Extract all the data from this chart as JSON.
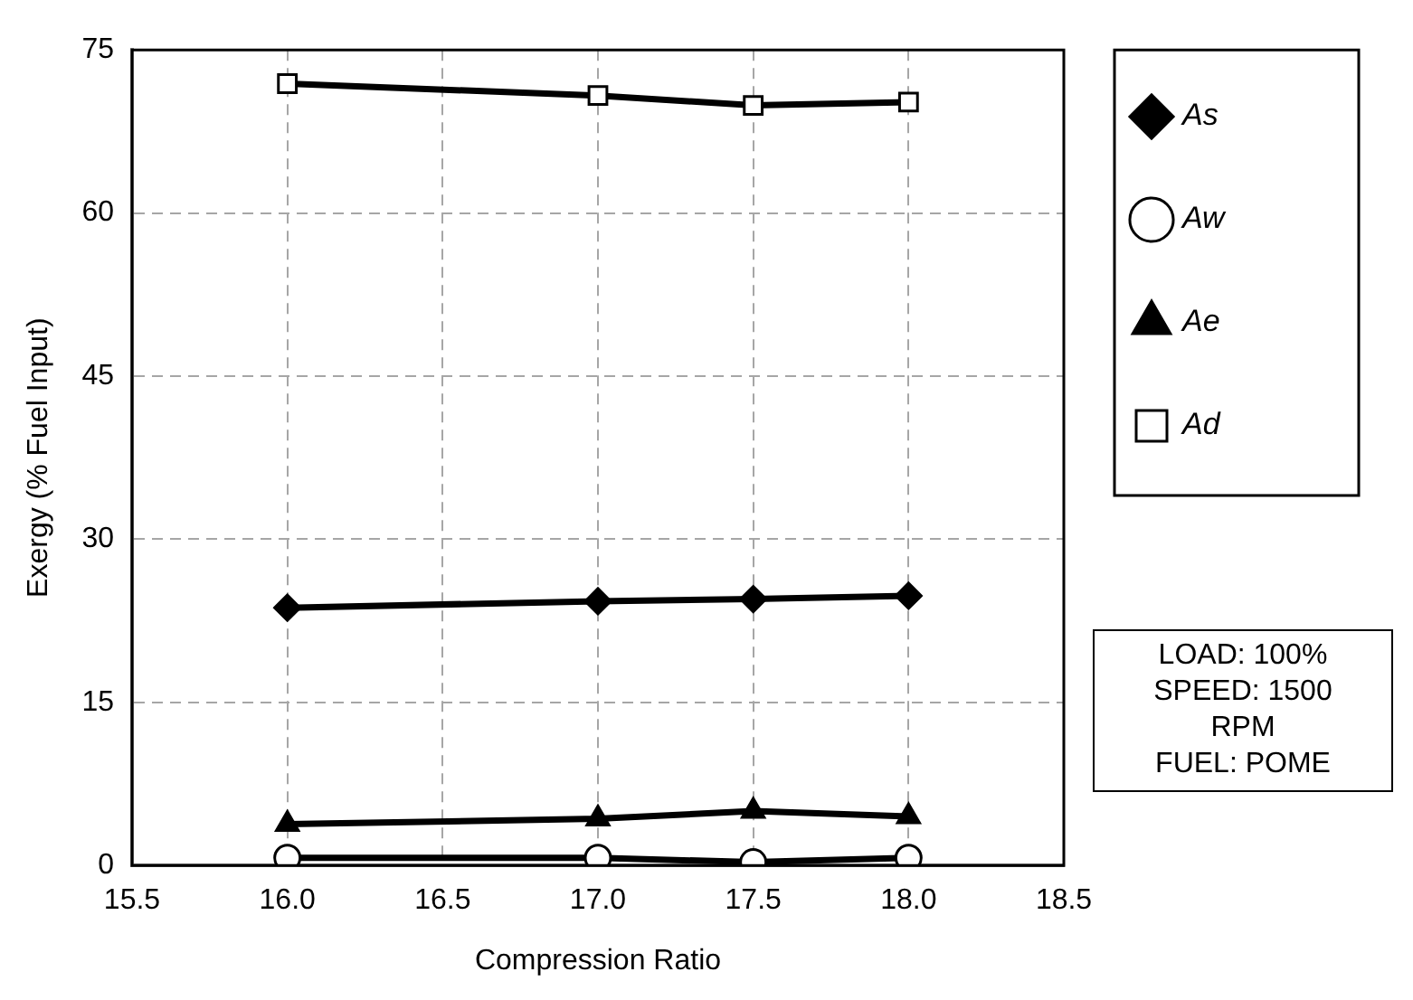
{
  "chart_data": {
    "type": "line",
    "xlabel": "Compression Ratio",
    "ylabel": "Exergy (% Fuel Input)",
    "x": [
      16.0,
      17.0,
      17.5,
      18.0
    ],
    "xlim": [
      15.5,
      18.5
    ],
    "xticks": [
      {
        "value": 15.5,
        "label": "15.5"
      },
      {
        "value": 16,
        "label": "16.0"
      },
      {
        "value": 16.5,
        "label": "16.5"
      },
      {
        "value": 17,
        "label": "17.0"
      },
      {
        "value": 17.5,
        "label": "17.5"
      },
      {
        "value": 18,
        "label": "18.0"
      },
      {
        "value": 18.5,
        "label": "18.5"
      }
    ],
    "ylim": [
      0,
      75
    ],
    "yticks": [
      0,
      15,
      30,
      45,
      60,
      75
    ],
    "grid": true,
    "legend": "right",
    "line_style": "solid",
    "series": [
      {
        "name": "As",
        "color": "#000000",
        "marker": "diamond",
        "values": [
          23.7,
          24.3,
          24.5,
          24.8
        ]
      },
      {
        "name": "Aw",
        "color": "#000000",
        "marker": "circle",
        "values": [
          0.7,
          0.7,
          0.3,
          0.7
        ]
      },
      {
        "name": "Ae",
        "color": "#000000",
        "marker": "triangle",
        "values": [
          3.8,
          4.3,
          5.0,
          4.5
        ]
      },
      {
        "name": "Ad",
        "color": "#000000",
        "marker": "square",
        "values": [
          71.9,
          70.8,
          69.9,
          70.2
        ]
      }
    ],
    "annotations": [
      "LOAD: 100%\nSPEED: 1500\nRPM\nFUEL: POME"
    ]
  }
}
